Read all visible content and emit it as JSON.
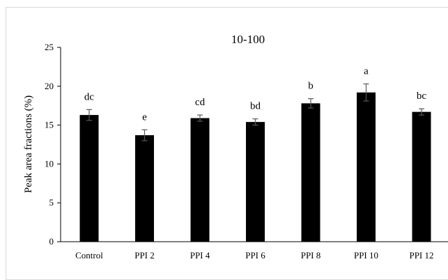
{
  "chart_data": {
    "type": "bar",
    "title": "10-100",
    "xlabel": "",
    "ylabel": "Peak area fractions (%)",
    "ylim": [
      0,
      25
    ],
    "yticks": [
      0,
      5,
      10,
      15,
      20,
      25
    ],
    "grid": false,
    "categories": [
      "Control",
      "PPI 2",
      "PPI 4",
      "PPI 6",
      "PPI 8",
      "PPI 10",
      "PPI 12"
    ],
    "values": [
      16.3,
      13.7,
      15.9,
      15.4,
      17.8,
      19.2,
      16.7
    ],
    "errors": [
      0.7,
      0.7,
      0.4,
      0.4,
      0.6,
      1.1,
      0.4
    ],
    "significance_labels": [
      "dc",
      "e",
      "cd",
      "bd",
      "b",
      "a",
      "bc"
    ],
    "bar_color": "#000000"
  }
}
